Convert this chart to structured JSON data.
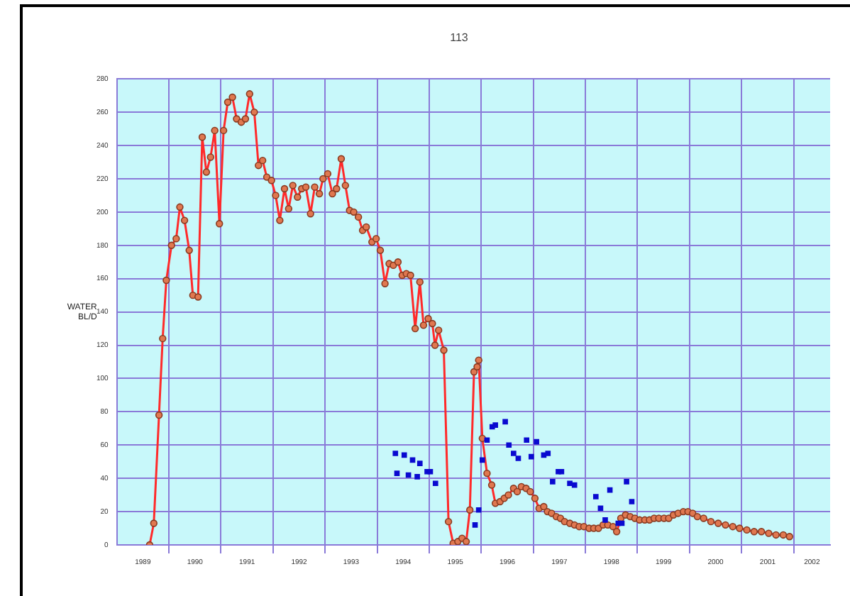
{
  "chart_data": {
    "type": "line",
    "title": "113",
    "ylabel": "WATER BL/D",
    "xlim": [
      1989,
      2002.7
    ],
    "xticks": [
      {
        "value": 1989.5,
        "label": "1989"
      },
      {
        "value": 1990,
        "label": null
      },
      {
        "value": 1990.5,
        "label": "1990"
      },
      {
        "value": 1991,
        "label": null
      },
      {
        "value": 1991.5,
        "label": "1991"
      },
      {
        "value": 1992,
        "label": null
      },
      {
        "value": 1992.5,
        "label": "1992"
      },
      {
        "value": 1993,
        "label": null
      },
      {
        "value": 1993.5,
        "label": "1993"
      },
      {
        "value": 1994,
        "label": null
      },
      {
        "value": 1994.5,
        "label": "1994"
      },
      {
        "value": 1995,
        "label": null
      },
      {
        "value": 1995.5,
        "label": "1995"
      },
      {
        "value": 1996,
        "label": null
      },
      {
        "value": 1996.5,
        "label": "1996"
      },
      {
        "value": 1997,
        "label": null
      },
      {
        "value": 1997.5,
        "label": "1997"
      },
      {
        "value": 1998,
        "label": null
      },
      {
        "value": 1998.5,
        "label": "1998"
      },
      {
        "value": 1999,
        "label": null
      },
      {
        "value": 1999.5,
        "label": "1999"
      },
      {
        "value": 2000,
        "label": null
      },
      {
        "value": 2000.5,
        "label": "2000"
      },
      {
        "value": 2001,
        "label": null
      },
      {
        "value": 2001.5,
        "label": "2001"
      },
      {
        "value": 2002,
        "label": null
      },
      {
        "value": 2002.35,
        "label": "2002"
      }
    ],
    "ylim": [
      0,
      280
    ],
    "yticks": [
      0,
      20,
      40,
      60,
      80,
      100,
      120,
      140,
      160,
      180,
      200,
      220,
      240,
      260,
      280
    ],
    "grid": true,
    "legend": false,
    "marker": "circle",
    "series": [
      {
        "color": "#ff2a2a",
        "x": [
          1989.63,
          1989.71,
          1989.81,
          1989.88,
          1989.95,
          1990.05,
          1990.14,
          1990.21,
          1990.3,
          1990.39,
          1990.46,
          1990.56,
          1990.64,
          1990.72,
          1990.8,
          1990.88,
          1990.97,
          1991.05,
          1991.13,
          1991.22,
          1991.3,
          1991.39,
          1991.47,
          1991.55,
          1991.64,
          1991.72,
          1991.8,
          1991.88,
          1991.97,
          1992.05,
          1992.13,
          1992.22,
          1992.3,
          1992.38,
          1992.47,
          1992.55,
          1992.63,
          1992.72,
          1992.8,
          1992.89,
          1992.96,
          1993.05,
          1993.14,
          1993.22,
          1993.31,
          1993.39,
          1993.47,
          1993.55,
          1993.64,
          1993.72,
          1993.79,
          1993.9,
          1993.98,
          1994.06,
          1994.15,
          1994.23,
          1994.31,
          1994.4,
          1994.48,
          1994.56,
          1994.64,
          1994.73,
          1994.82,
          1994.89,
          1994.98,
          1995.06,
          1995.11,
          1995.18,
          1995.28,
          1995.37,
          1995.46,
          1995.55,
          1995.63,
          1995.71,
          1995.78,
          1995.86,
          1995.92,
          1995.95,
          1996.02,
          1996.11,
          1996.2,
          1996.27,
          1996.36,
          1996.44,
          1996.52,
          1996.62,
          1996.69,
          1996.77,
          1996.86,
          1996.94,
          1997.03,
          1997.11,
          1997.2,
          1997.27,
          1997.35,
          1997.44,
          1997.52,
          1997.6,
          1997.7,
          1997.79,
          1997.88,
          1997.97,
          1998.07,
          1998.16,
          1998.25,
          1998.34,
          1998.43,
          1998.53,
          1998.6,
          1998.68,
          1998.77,
          1998.86,
          1998.95,
          1999.04,
          1999.14,
          1999.23,
          1999.32,
          1999.41,
          1999.51,
          1999.6,
          1999.69,
          1999.78,
          1999.88,
          1999.97,
          2000.06,
          2000.15,
          2000.27,
          2000.41,
          2000.55,
          2000.69,
          2000.83,
          2000.96,
          2001.1,
          2001.24,
          2001.38,
          2001.52,
          2001.66,
          2001.8,
          2001.92
        ],
        "values": [
          0,
          13,
          78,
          124,
          159,
          180,
          184,
          203,
          195,
          177,
          150,
          149,
          245,
          224,
          233,
          249,
          193,
          249,
          266,
          269,
          256,
          254,
          256,
          271,
          260,
          228,
          231,
          221,
          219,
          210,
          195,
          214,
          202,
          216,
          209,
          214,
          215,
          199,
          215,
          211,
          220,
          223,
          211,
          214,
          232,
          216,
          201,
          200,
          197,
          189,
          191,
          182,
          184,
          177,
          157,
          169,
          168,
          170,
          162,
          163,
          162,
          130,
          158,
          132,
          136,
          133,
          120,
          129,
          117,
          14,
          1,
          2,
          4,
          2,
          21,
          104,
          107,
          111,
          64,
          43,
          36,
          25,
          26,
          28,
          30,
          34,
          32,
          35,
          34,
          32,
          28,
          22,
          23,
          20,
          19,
          17,
          16,
          14,
          13,
          12,
          11,
          11,
          10,
          10,
          10,
          12,
          12,
          11,
          8,
          16,
          18,
          17,
          16,
          15,
          15,
          15,
          16,
          16,
          16,
          16,
          18,
          19,
          20,
          20,
          19,
          17,
          16,
          14,
          13,
          12,
          11,
          10,
          9,
          8,
          8,
          7,
          6,
          6,
          5
        ]
      },
      {
        "type": "scatter",
        "color": "#0a0ad0",
        "marker": "square",
        "x": [
          1994.35,
          1994.38,
          1994.52,
          1994.6,
          1994.68,
          1994.77,
          1994.82,
          1994.96,
          1995.02,
          1995.12,
          1995.88,
          1995.95,
          1996.02,
          1996.11,
          1996.21,
          1996.27,
          1996.46,
          1996.53,
          1996.62,
          1996.71,
          1996.87,
          1996.96,
          1997.06,
          1997.2,
          1997.28,
          1997.37,
          1997.48,
          1997.54,
          1997.7,
          1997.79,
          1998.2,
          1998.29,
          1998.38,
          1998.47,
          1998.63,
          1998.7,
          1998.79,
          1998.89
        ],
        "values": [
          55,
          43,
          54,
          42,
          51,
          41,
          49,
          44,
          44,
          37,
          12,
          21,
          51,
          63,
          71,
          72,
          74,
          60,
          55,
          52,
          63,
          53,
          62,
          54,
          55,
          38,
          44,
          44,
          37,
          36,
          29,
          22,
          15,
          33,
          13,
          13,
          38,
          26
        ]
      }
    ]
  }
}
